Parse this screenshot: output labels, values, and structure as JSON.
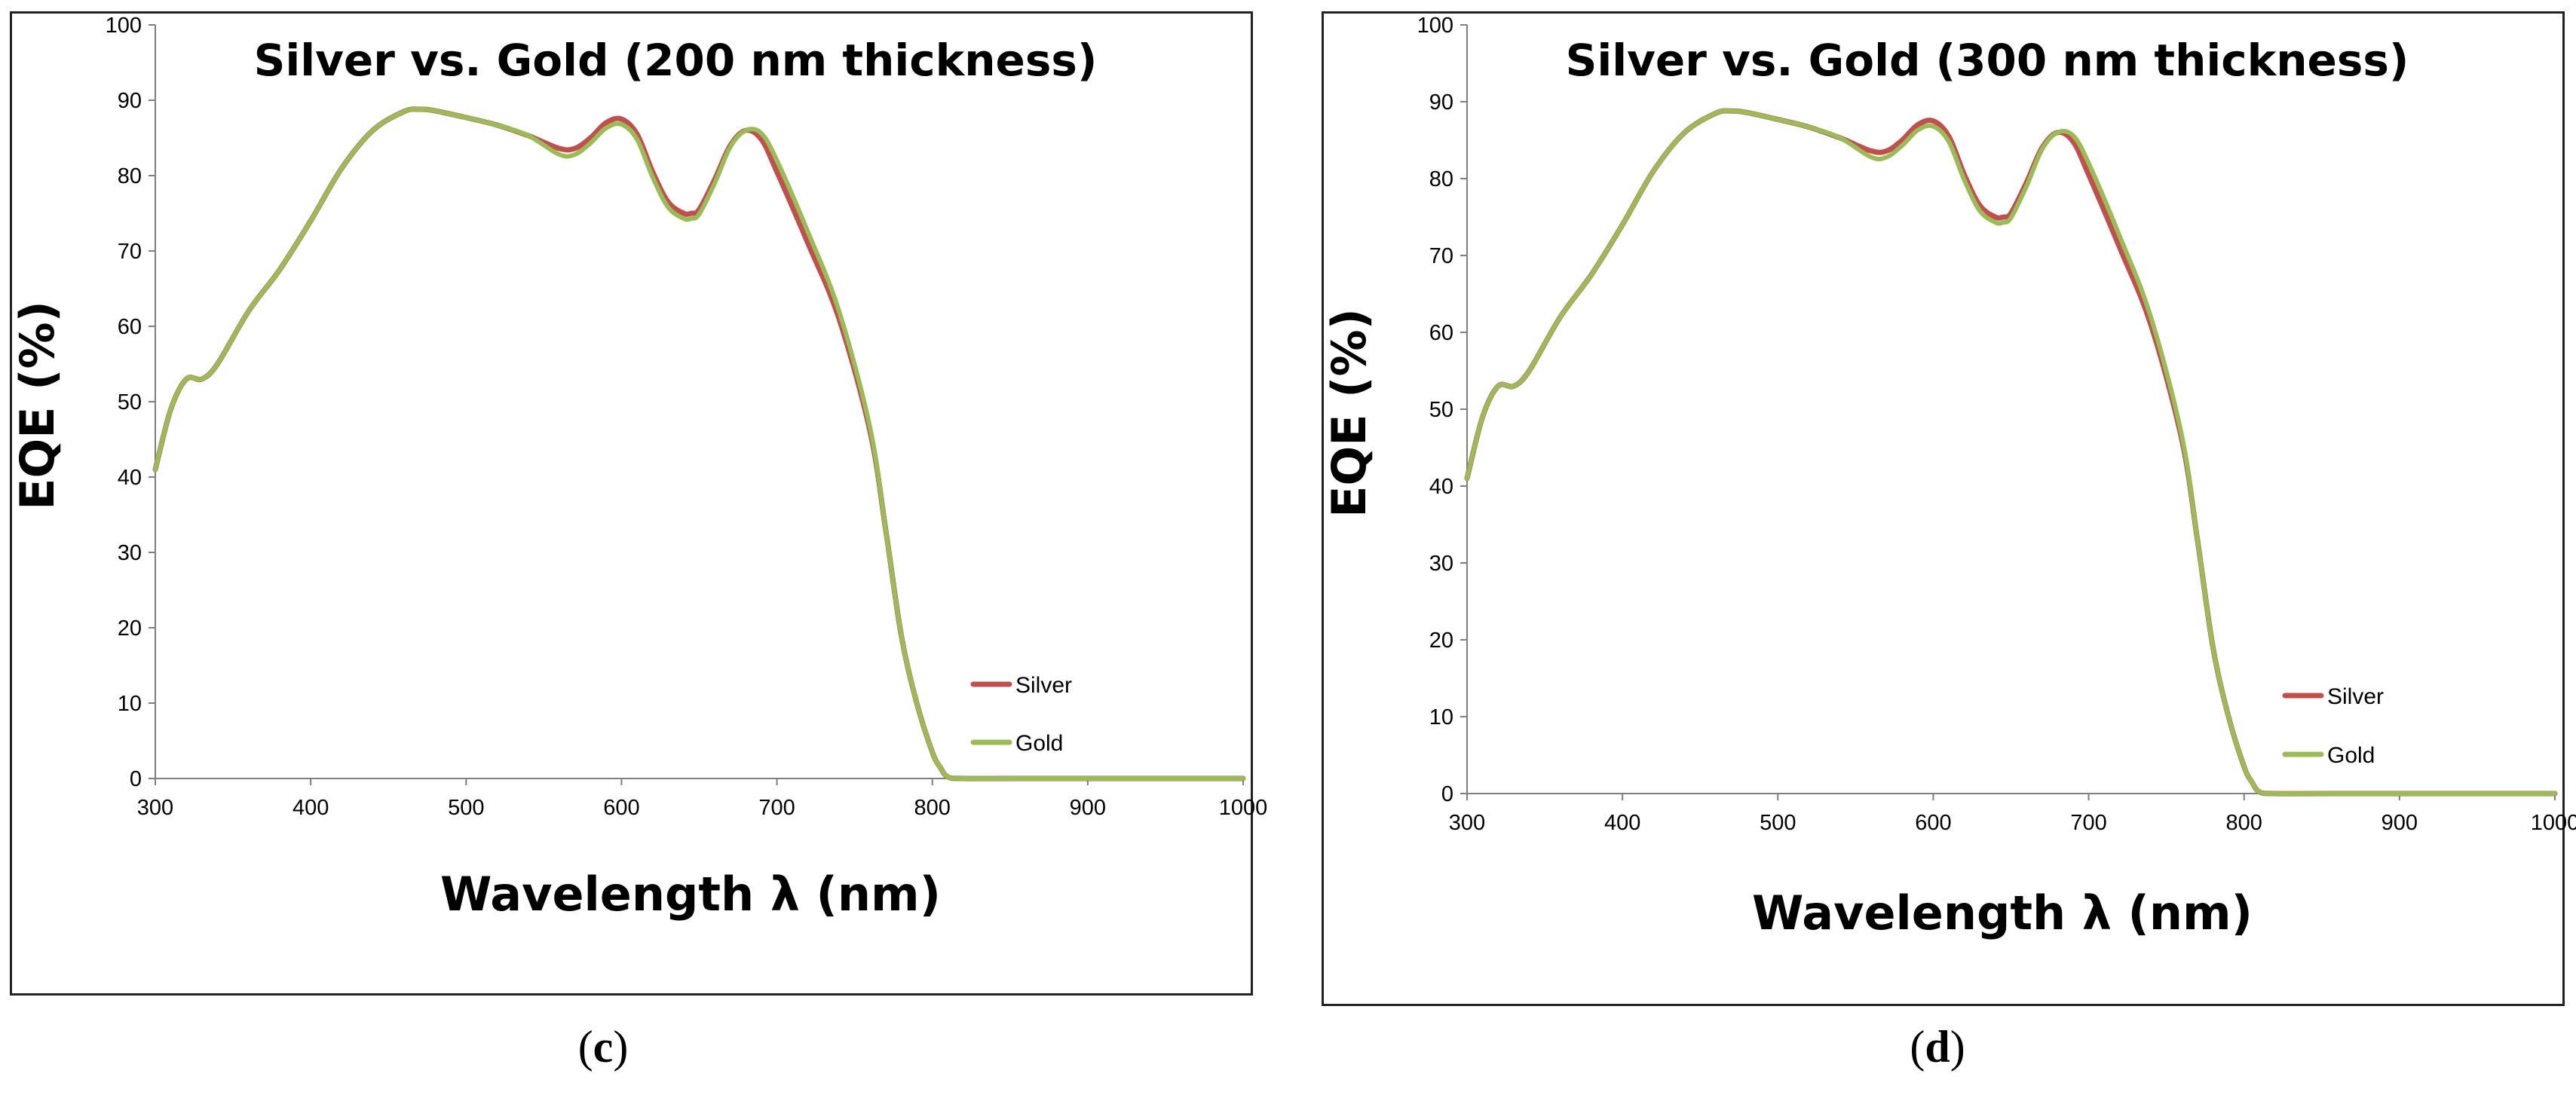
{
  "colors": {
    "silver": "#c0504d",
    "gold": "#9bbb59",
    "axis": "#7f7f7f"
  },
  "panels": [
    {
      "caption_letter": "c"
    },
    {
      "caption_letter": "d"
    }
  ],
  "chart_data": [
    {
      "type": "line",
      "title": "Silver vs. Gold (200 nm thickness)",
      "xlabel": "Wavelength λ (nm)",
      "ylabel": "EQE (%)",
      "xlim": [
        300,
        1000
      ],
      "ylim": [
        0,
        100
      ],
      "xticks": [
        300,
        400,
        500,
        600,
        700,
        800,
        900,
        1000
      ],
      "yticks": [
        0,
        10,
        20,
        30,
        40,
        50,
        60,
        70,
        80,
        90,
        100
      ],
      "legend": "right",
      "series": [
        {
          "name": "Silver",
          "x": [
            300,
            310,
            320,
            330,
            340,
            360,
            380,
            400,
            420,
            440,
            460,
            470,
            480,
            500,
            520,
            540,
            560,
            570,
            580,
            590,
            600,
            610,
            620,
            630,
            640,
            645,
            650,
            660,
            670,
            680,
            690,
            700,
            720,
            740,
            760,
            770,
            780,
            790,
            800,
            805,
            810,
            820,
            850,
            900,
            950,
            1000
          ],
          "y": [
            41,
            49,
            53,
            53,
            55,
            62,
            67.5,
            74,
            81,
            86,
            88.5,
            88.8,
            88.6,
            87.7,
            86.7,
            85.3,
            83.6,
            83.6,
            85,
            87,
            87.5,
            85.5,
            80.5,
            76.5,
            75,
            75,
            75.5,
            79.5,
            84,
            86,
            84.8,
            80.5,
            71,
            61,
            46,
            33,
            19,
            10,
            3.5,
            1.5,
            0.2,
            0,
            0,
            0,
            0,
            0
          ]
        },
        {
          "name": "Gold",
          "x": [
            300,
            310,
            320,
            330,
            340,
            360,
            380,
            400,
            420,
            440,
            460,
            470,
            480,
            500,
            520,
            540,
            560,
            570,
            580,
            590,
            600,
            610,
            620,
            630,
            640,
            645,
            650,
            660,
            670,
            680,
            690,
            700,
            720,
            740,
            760,
            770,
            780,
            790,
            800,
            805,
            810,
            820,
            850,
            900,
            950,
            1000
          ],
          "y": [
            41,
            49,
            53,
            53,
            55,
            62,
            67.5,
            74,
            81,
            86,
            88.5,
            88.8,
            88.6,
            87.7,
            86.7,
            85.3,
            82.8,
            82.8,
            84.3,
            86.3,
            86.8,
            84.8,
            79.8,
            75.8,
            74.3,
            74.3,
            74.9,
            79,
            83.8,
            86,
            85.6,
            82,
            72.5,
            62,
            46.5,
            33,
            19,
            10,
            3.5,
            1.5,
            0.2,
            0,
            0,
            0,
            0,
            0
          ]
        }
      ]
    },
    {
      "type": "line",
      "title": "Silver vs. Gold (300 nm thickness)",
      "xlabel": "Wavelength λ (nm)",
      "ylabel": "EQE (%)",
      "xlim": [
        300,
        1000
      ],
      "ylim": [
        0,
        100
      ],
      "xticks": [
        300,
        400,
        500,
        600,
        700,
        800,
        900,
        1000
      ],
      "yticks": [
        0,
        10,
        20,
        30,
        40,
        50,
        60,
        70,
        80,
        90,
        100
      ],
      "legend": "right",
      "series": [
        {
          "name": "Silver",
          "x": [
            300,
            310,
            320,
            330,
            340,
            360,
            380,
            400,
            420,
            440,
            460,
            470,
            480,
            500,
            520,
            540,
            560,
            570,
            580,
            590,
            600,
            610,
            620,
            630,
            640,
            645,
            650,
            660,
            670,
            680,
            690,
            700,
            720,
            740,
            760,
            770,
            780,
            790,
            800,
            805,
            810,
            820,
            850,
            900,
            950,
            1000
          ],
          "y": [
            41,
            49,
            53,
            53,
            55,
            62,
            67.5,
            74,
            81,
            86,
            88.5,
            88.8,
            88.6,
            87.7,
            86.7,
            85.3,
            83.6,
            83.6,
            85,
            87,
            87.5,
            85.5,
            80.5,
            76.5,
            75,
            75,
            75.5,
            79.5,
            84,
            86,
            84.8,
            80.5,
            71,
            61,
            46,
            33,
            19,
            10,
            3.5,
            1.5,
            0.2,
            0,
            0,
            0,
            0,
            0
          ]
        },
        {
          "name": "Gold",
          "x": [
            300,
            310,
            320,
            330,
            340,
            360,
            380,
            400,
            420,
            440,
            460,
            470,
            480,
            500,
            520,
            540,
            560,
            570,
            580,
            590,
            600,
            610,
            620,
            630,
            640,
            645,
            650,
            660,
            670,
            680,
            690,
            700,
            720,
            740,
            760,
            770,
            780,
            790,
            800,
            805,
            810,
            820,
            850,
            900,
            950,
            1000
          ],
          "y": [
            41,
            49,
            53,
            53,
            55,
            62,
            67.5,
            74,
            81,
            86,
            88.5,
            88.8,
            88.6,
            87.7,
            86.7,
            85.3,
            82.8,
            82.8,
            84.3,
            86.3,
            86.8,
            84.8,
            79.8,
            75.8,
            74.3,
            74.3,
            74.9,
            79,
            83.8,
            86,
            85.6,
            82,
            72.5,
            62,
            46.5,
            33,
            19,
            10,
            3.5,
            1.5,
            0.2,
            0,
            0,
            0,
            0,
            0
          ]
        }
      ]
    }
  ]
}
